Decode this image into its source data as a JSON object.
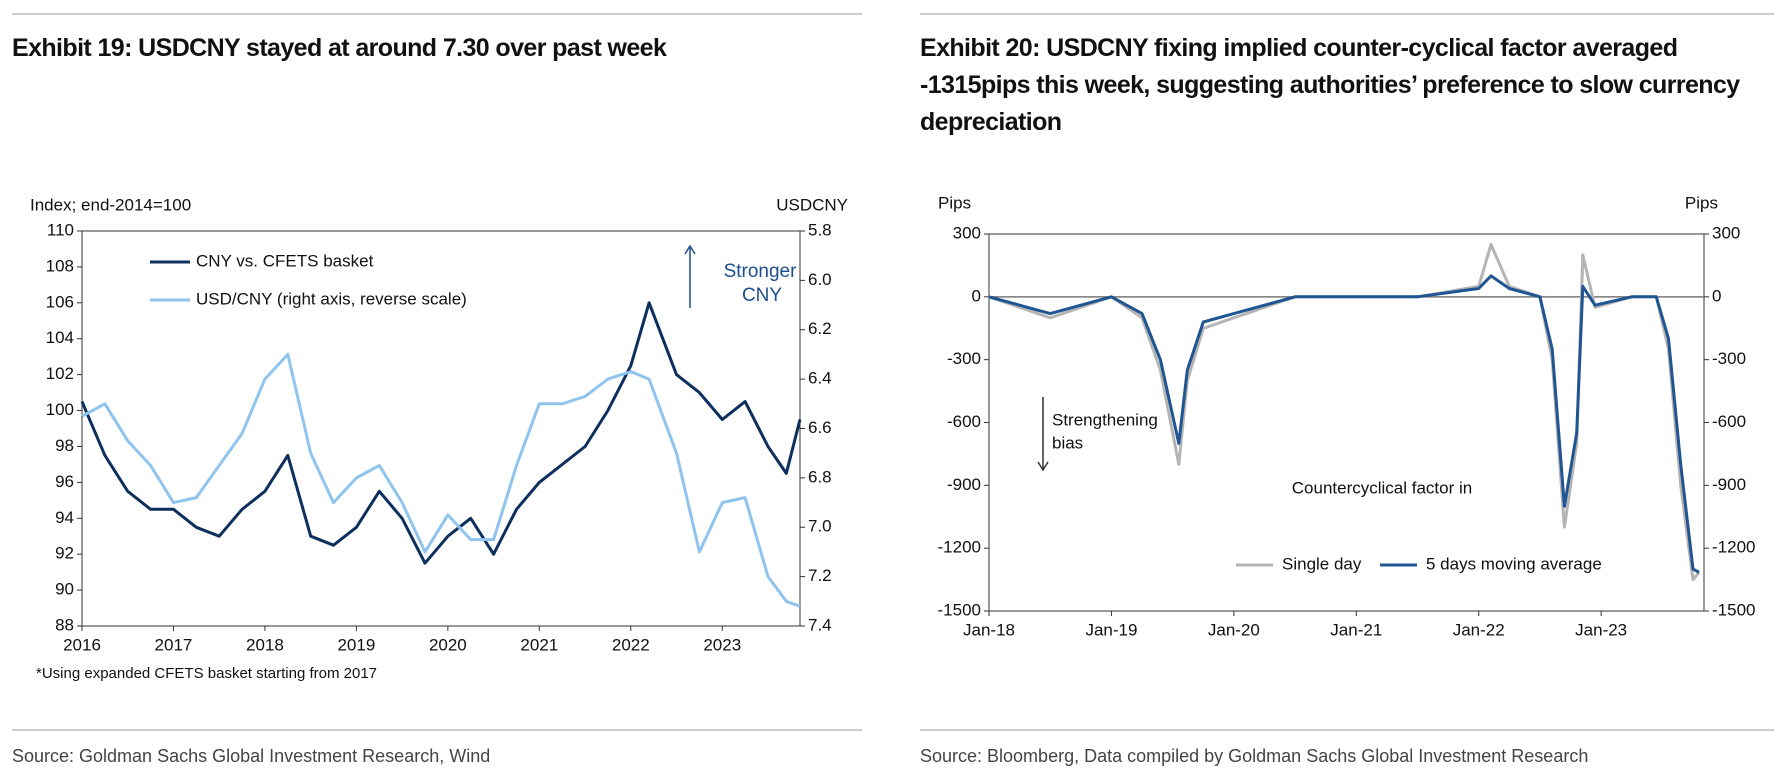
{
  "chart_data": [
    {
      "type": "line",
      "title": "Exhibit 19: USDCNY stayed at around 7.30 over past week",
      "y_label": "Index; end-2014=100",
      "y2_label": "USDCNY",
      "annotations": [
        "Stronger",
        "CNY"
      ],
      "note": "*Using expanded CFETS basket starting from 2017",
      "source": "Source: Goldman Sachs Global Investment Research, Wind",
      "xlim": [
        2016,
        2023.85
      ],
      "xticks": [
        2016,
        2017,
        2018,
        2019,
        2020,
        2021,
        2022,
        2023
      ],
      "ylim": [
        88,
        110
      ],
      "yticks": [
        88,
        90,
        92,
        94,
        96,
        98,
        100,
        102,
        104,
        106,
        108,
        110
      ],
      "y2lim": [
        7.4,
        5.8
      ],
      "y2ticks": [
        {
          "value": 7.4,
          "label": "7.4"
        },
        {
          "value": 7.2,
          "label": "7.2"
        },
        {
          "value": 7,
          "label": "7.0"
        },
        {
          "value": 6.8,
          "label": "6.8"
        },
        {
          "value": 6.6,
          "label": "6.6"
        },
        {
          "value": 6.4,
          "label": "6.4"
        },
        {
          "value": 6.2,
          "label": "6.2"
        },
        {
          "value": 6,
          "label": "6.0"
        },
        {
          "value": 5.8,
          "label": "5.8"
        }
      ],
      "legend": "top-left",
      "x": [
        2016,
        2016.25,
        2016.5,
        2016.75,
        2017,
        2017.25,
        2017.5,
        2017.75,
        2018,
        2018.25,
        2018.5,
        2018.75,
        2019,
        2019.25,
        2019.5,
        2019.75,
        2020,
        2020.25,
        2020.5,
        2020.75,
        2021,
        2021.25,
        2021.5,
        2021.75,
        2022,
        2022.2,
        2022.5,
        2022.75,
        2023,
        2023.25,
        2023.5,
        2023.7,
        2023.85
      ],
      "series": [
        {
          "name": "CNY vs. CFETS basket",
          "color": "#0d2f5e",
          "axis": "y",
          "values": [
            100.5,
            97.5,
            95.5,
            94.5,
            94.5,
            93.5,
            93,
            94.5,
            95.5,
            97.5,
            93,
            92.5,
            93.5,
            95.5,
            94,
            91.5,
            93,
            94,
            92,
            94.5,
            96,
            97,
            98,
            100,
            102.5,
            106,
            102,
            101,
            99.5,
            100.5,
            98,
            96.5,
            99.5
          ]
        },
        {
          "name": "USD/CNY (right axis, reverse scale)",
          "color": "#8fc4ee",
          "axis": "y2",
          "values": [
            6.55,
            6.5,
            6.65,
            6.75,
            6.9,
            6.88,
            6.75,
            6.62,
            6.4,
            6.3,
            6.7,
            6.9,
            6.8,
            6.75,
            6.9,
            7.1,
            6.95,
            7.05,
            7.05,
            6.75,
            6.5,
            6.5,
            6.47,
            6.4,
            6.37,
            6.4,
            6.7,
            7.1,
            6.9,
            6.88,
            7.2,
            7.3,
            7.32
          ]
        }
      ]
    },
    {
      "type": "line",
      "title": "Exhibit 20: USDCNY fixing implied counter-cyclical factor averaged -1315pips this week, suggesting authorities’ preference to slow currency depreciation",
      "y_label": "Pips",
      "y2_label": "Pips",
      "annotations": [
        "Strengthening",
        "bias",
        "Countercyclical factor in"
      ],
      "source": "Source: Bloomberg, Data compiled by Goldman Sachs Global Investment Research",
      "xlim": [
        2018,
        2023.84
      ],
      "xticks": [
        {
          "value": 2018,
          "label": "Jan-18"
        },
        {
          "value": 2019,
          "label": "Jan-19"
        },
        {
          "value": 2020,
          "label": "Jan-20"
        },
        {
          "value": 2021,
          "label": "Jan-21"
        },
        {
          "value": 2022,
          "label": "Jan-22"
        },
        {
          "value": 2023,
          "label": "Jan-23"
        }
      ],
      "ylim": [
        -1500,
        300
      ],
      "yticks": [
        -1500,
        -1200,
        -900,
        -600,
        -300,
        0,
        300
      ],
      "y2lim": [
        -1500,
        300
      ],
      "y2ticks": [
        -1500,
        -1200,
        -900,
        -600,
        -300,
        0,
        300
      ],
      "zero_line": true,
      "legend": "bottom",
      "x": [
        2018,
        2018.25,
        2018.5,
        2018.75,
        2019,
        2019.25,
        2019.4,
        2019.55,
        2019.62,
        2019.75,
        2020,
        2020.25,
        2020.5,
        2020.75,
        2021,
        2021.5,
        2022,
        2022.1,
        2022.25,
        2022.5,
        2022.6,
        2022.7,
        2022.8,
        2022.85,
        2022.95,
        2023.25,
        2023.45,
        2023.55,
        2023.65,
        2023.75,
        2023.8
      ],
      "series": [
        {
          "name": "Single day",
          "color": "#b4b4b4",
          "axis": "y",
          "values": [
            0,
            -50,
            -100,
            -50,
            0,
            -100,
            -350,
            -800,
            -400,
            -150,
            -100,
            -50,
            0,
            0,
            0,
            0,
            50,
            250,
            50,
            0,
            -300,
            -1100,
            -700,
            200,
            -50,
            0,
            0,
            -250,
            -900,
            -1350,
            -1315
          ]
        },
        {
          "name": "5 days moving average",
          "color": "#1f5592",
          "axis": "y",
          "values": [
            0,
            -40,
            -80,
            -40,
            0,
            -80,
            -300,
            -700,
            -350,
            -120,
            -80,
            -40,
            0,
            0,
            0,
            0,
            40,
            100,
            40,
            0,
            -250,
            -1000,
            -650,
            50,
            -40,
            0,
            0,
            -200,
            -800,
            -1300,
            -1315
          ]
        }
      ]
    }
  ]
}
